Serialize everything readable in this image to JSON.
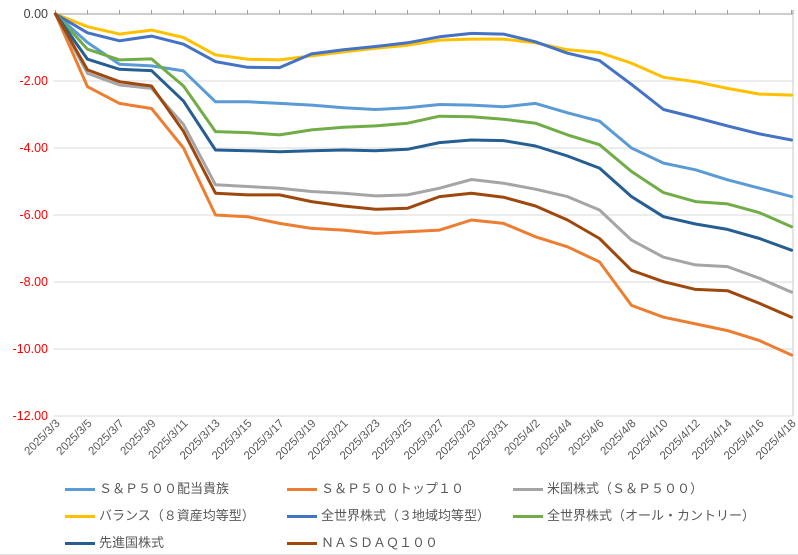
{
  "chart_data": {
    "type": "line",
    "title": "",
    "xlabel": "",
    "ylabel": "",
    "grid": true,
    "legend_position": "bottom",
    "x_labels": [
      "2025/3/3",
      "2025/3/5",
      "2025/3/7",
      "2025/3/9",
      "2025/3/11",
      "2025/3/13",
      "2025/3/15",
      "2025/3/17",
      "2025/3/19",
      "2025/3/21",
      "2025/3/23",
      "2025/3/25",
      "2025/3/27",
      "2025/3/29",
      "2025/3/31",
      "2025/4/2",
      "2025/4/4",
      "2025/4/6",
      "2025/4/8",
      "2025/4/10",
      "2025/4/12",
      "2025/4/14",
      "2025/4/16",
      "2025/4/18"
    ],
    "y_axis": {
      "min": -12,
      "max": 0,
      "tick_step": 2,
      "ticks": [
        "0.00",
        "-2.00",
        "-4.00",
        "-6.00",
        "-8.00",
        "-10.00",
        "-12.00"
      ],
      "zero_label_color": "#404040",
      "negative_label_color": "#ff0000"
    },
    "series": [
      {
        "name": "Ｓ＆Ｐ５００配当貴族",
        "color": "#5B9BD5",
        "values": [
          0,
          -0.85,
          -1.5,
          -1.55,
          -1.7,
          -2.62,
          -2.62,
          -2.67,
          -2.72,
          -2.8,
          -2.85,
          -2.8,
          -2.7,
          -2.72,
          -2.77,
          -2.67,
          -2.95,
          -3.2,
          -4.0,
          -4.45,
          -4.65,
          -4.95,
          -5.2,
          -5.45
        ]
      },
      {
        "name": "Ｓ＆Ｐ５００トップ１０",
        "color": "#ED7D31",
        "values": [
          0,
          -2.17,
          -2.67,
          -2.82,
          -4.0,
          -6.0,
          -6.05,
          -6.25,
          -6.4,
          -6.45,
          -6.55,
          -6.5,
          -6.45,
          -6.15,
          -6.25,
          -6.65,
          -6.95,
          -7.4,
          -8.7,
          -9.05,
          -9.25,
          -9.45,
          -9.75,
          -10.18
        ]
      },
      {
        "name": "米国株式（Ｓ＆Ｐ５００）",
        "color": "#A5A5A5",
        "values": [
          0,
          -1.77,
          -2.12,
          -2.22,
          -3.3,
          -5.1,
          -5.15,
          -5.2,
          -5.3,
          -5.35,
          -5.43,
          -5.4,
          -5.2,
          -4.94,
          -5.05,
          -5.23,
          -5.45,
          -5.85,
          -6.75,
          -7.26,
          -7.49,
          -7.54,
          -7.89,
          -8.3
        ]
      },
      {
        "name": "バランス（８資産均等型）",
        "color": "#FFC000",
        "values": [
          0,
          -0.38,
          -0.6,
          -0.48,
          -0.7,
          -1.22,
          -1.35,
          -1.37,
          -1.25,
          -1.13,
          -1.02,
          -0.93,
          -0.78,
          -0.75,
          -0.75,
          -0.86,
          -1.07,
          -1.15,
          -1.47,
          -1.89,
          -2.02,
          -2.22,
          -2.39,
          -2.42
        ]
      },
      {
        "name": "全世界株式（３地域均等型）",
        "color": "#4472C4",
        "values": [
          0,
          -0.56,
          -0.8,
          -0.66,
          -0.9,
          -1.42,
          -1.59,
          -1.6,
          -1.19,
          -1.07,
          -0.97,
          -0.86,
          -0.68,
          -0.58,
          -0.6,
          -0.83,
          -1.17,
          -1.39,
          -2.1,
          -2.85,
          -3.09,
          -3.34,
          -3.58,
          -3.76
        ]
      },
      {
        "name": "全世界株式（オール・カントリー）",
        "color": "#70AD47",
        "values": [
          0,
          -1.05,
          -1.37,
          -1.34,
          -2.15,
          -3.51,
          -3.54,
          -3.61,
          -3.46,
          -3.38,
          -3.34,
          -3.26,
          -3.05,
          -3.07,
          -3.14,
          -3.26,
          -3.61,
          -3.9,
          -4.7,
          -5.33,
          -5.6,
          -5.67,
          -5.93,
          -6.35
        ]
      },
      {
        "name": "先進国株式",
        "color": "#255E91",
        "values": [
          0,
          -1.35,
          -1.65,
          -1.69,
          -2.6,
          -4.06,
          -4.08,
          -4.11,
          -4.08,
          -4.06,
          -4.08,
          -4.04,
          -3.84,
          -3.76,
          -3.78,
          -3.94,
          -4.24,
          -4.6,
          -5.45,
          -6.05,
          -6.27,
          -6.43,
          -6.7,
          -7.05
        ]
      },
      {
        "name": "ＮＡＳＤＡＱ１００",
        "color": "#9E480E",
        "values": [
          0,
          -1.67,
          -2.02,
          -2.15,
          -3.5,
          -5.35,
          -5.4,
          -5.4,
          -5.6,
          -5.73,
          -5.83,
          -5.8,
          -5.45,
          -5.35,
          -5.47,
          -5.73,
          -6.15,
          -6.7,
          -7.65,
          -7.99,
          -8.22,
          -8.26,
          -8.64,
          -9.05
        ]
      }
    ],
    "axis_colors": {
      "gridline": "#D9D9D9",
      "axis_line": "#9B9B9B",
      "plot_right_border": "#C9C9C9",
      "x_label_color": "#595959"
    }
  }
}
